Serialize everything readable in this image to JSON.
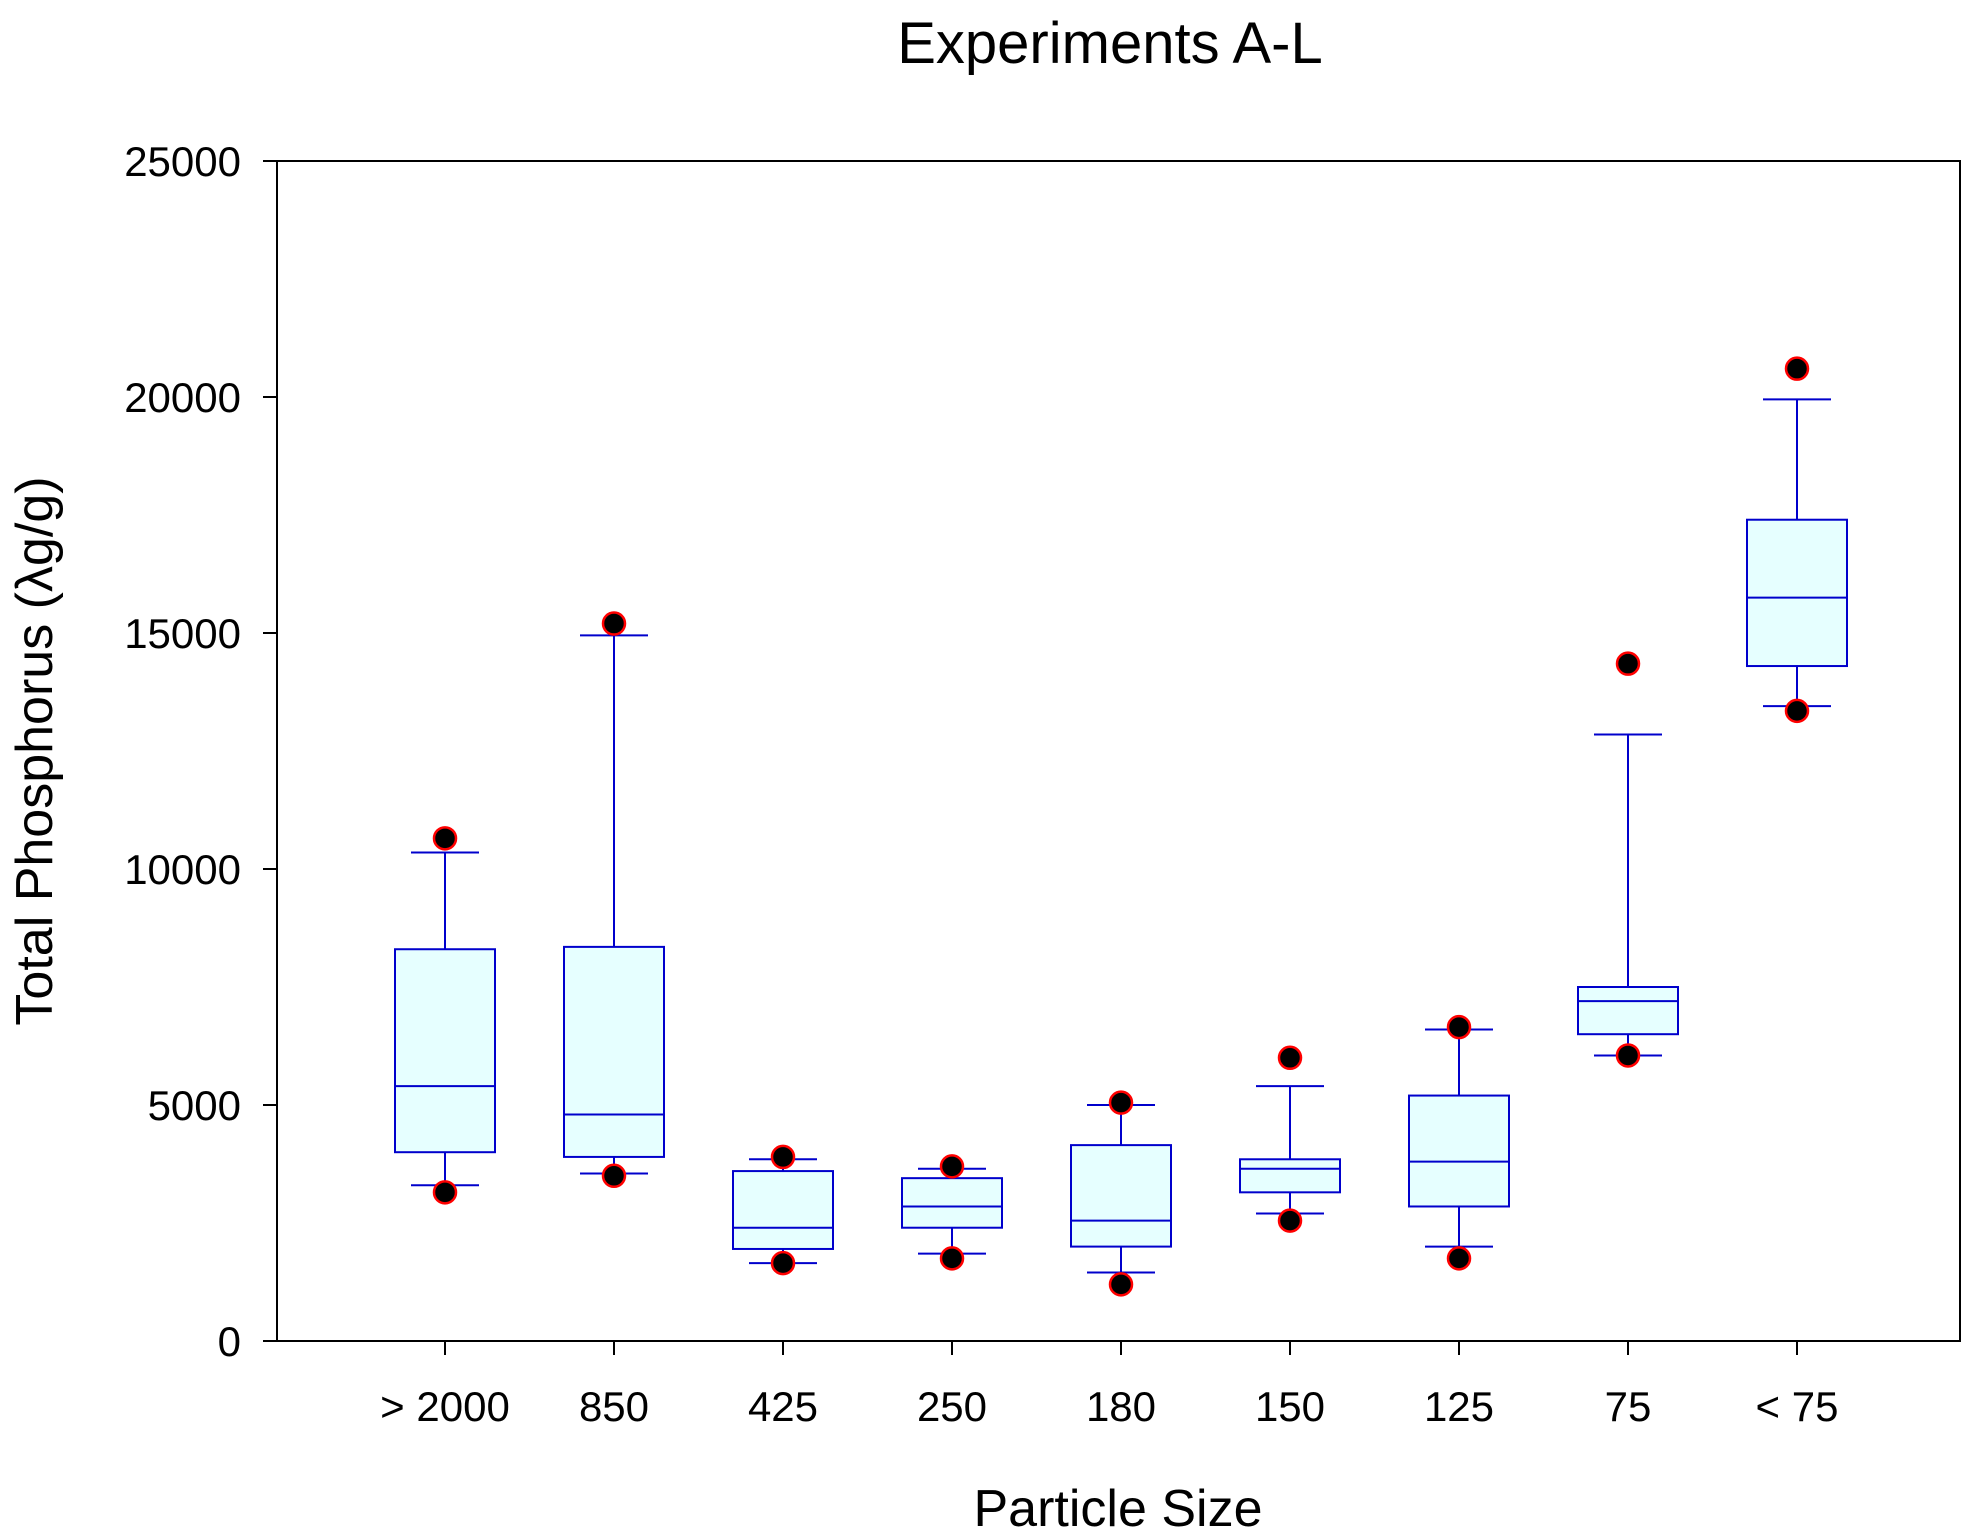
{
  "chart_data": {
    "type": "box",
    "title": "Experiments A-L",
    "xlabel": "Particle Size",
    "ylabel": "Total Phosphorus (λg/g)",
    "ylim": [
      0,
      25000
    ],
    "yticks": [
      0,
      5000,
      10000,
      15000,
      20000,
      25000
    ],
    "grid": false,
    "legend": "none",
    "categories": [
      "> 2000",
      "850",
      "425",
      "250",
      "180",
      "150",
      "125",
      "75",
      "< 75"
    ],
    "boxes": [
      {
        "category": "> 2000",
        "whisker_low": 3300,
        "q1": 4000,
        "median": 5400,
        "q3": 8300,
        "whisker_high": 10350,
        "outliers": [
          3150,
          10650
        ]
      },
      {
        "category": "850",
        "whisker_low": 3550,
        "q1": 3900,
        "median": 4800,
        "q3": 8350,
        "whisker_high": 14950,
        "outliers": [
          3500,
          15200
        ]
      },
      {
        "category": "425",
        "whisker_low": 1650,
        "q1": 1950,
        "median": 2400,
        "q3": 3600,
        "whisker_high": 3850,
        "outliers": [
          1650,
          3900
        ]
      },
      {
        "category": "250",
        "whisker_low": 1850,
        "q1": 2400,
        "median": 2850,
        "q3": 3450,
        "whisker_high": 3650,
        "outliers": [
          1750,
          3700
        ]
      },
      {
        "category": "180",
        "whisker_low": 1450,
        "q1": 2000,
        "median": 2550,
        "q3": 4150,
        "whisker_high": 5000,
        "outliers": [
          1200,
          5050
        ]
      },
      {
        "category": "150",
        "whisker_low": 2700,
        "q1": 3150,
        "median": 3650,
        "q3": 3850,
        "whisker_high": 5400,
        "outliers": [
          2550,
          6000
        ]
      },
      {
        "category": "125",
        "whisker_low": 2000,
        "q1": 2850,
        "median": 3800,
        "q3": 5200,
        "whisker_high": 6600,
        "outliers": [
          1750,
          6650
        ]
      },
      {
        "category": "75",
        "whisker_low": 6050,
        "q1": 6500,
        "median": 7200,
        "q3": 7500,
        "whisker_high": 12850,
        "outliers": [
          6050,
          14350
        ]
      },
      {
        "category": "< 75",
        "whisker_low": 13450,
        "q1": 14300,
        "median": 15750,
        "q3": 17400,
        "whisker_high": 19950,
        "outliers": [
          13350,
          20600
        ]
      }
    ],
    "colors": {
      "box_fill": "#e6ffff",
      "box_stroke": "#0000cc",
      "outlier_fill": "#000000",
      "outlier_stroke": "#ff0000",
      "axis": "#000000"
    }
  }
}
